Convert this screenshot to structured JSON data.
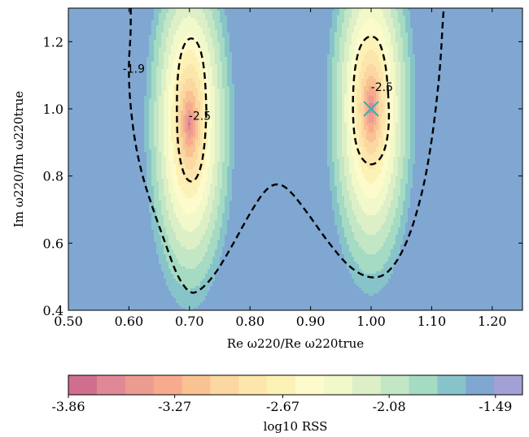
{
  "chart_data": [
    {
      "type": "heatmap",
      "title": "",
      "xlabel": "Re ω220/Re ω220true",
      "ylabel": "Im ω220/Im ω220true",
      "xlim": [
        0.5,
        1.25
      ],
      "ylim": [
        0.4,
        1.3
      ],
      "xticks": [
        0.5,
        0.6,
        0.7,
        0.8,
        0.9,
        1.0,
        1.1,
        1.2
      ],
      "xtick_labels": [
        "0.50",
        "0.60",
        "0.70",
        "0.80",
        "0.90",
        "1.00",
        "1.10",
        "1.20"
      ],
      "yticks": [
        0.4,
        0.6,
        0.8,
        1.0,
        1.2
      ],
      "ytick_labels": [
        "0.4",
        "0.6",
        "0.8",
        "1.0",
        "1.2"
      ],
      "field": "log10 RSS",
      "minima": [
        {
          "x": 0.7,
          "y": 0.955
        },
        {
          "x": 1.0,
          "y": 1.0
        }
      ],
      "true_value_marker": {
        "x": 1.0,
        "y": 1.0,
        "symbol": "x"
      },
      "contour_levels": [
        -1.9,
        -2.5
      ],
      "contour_labels": [
        {
          "text": "-1.9",
          "x": 0.608,
          "y": 1.12
        },
        {
          "text": "-2.5",
          "x": 0.717,
          "y": 0.98
        },
        {
          "text": "-2.5",
          "x": 1.018,
          "y": 1.065
        }
      ],
      "contour_lines": [
        {
          "level": -1.9,
          "points": [
            [
              0.603,
              1.3
            ],
            [
              0.603,
              1.22
            ],
            [
              0.6,
              1.15
            ],
            [
              0.6,
              1.08
            ],
            [
              0.603,
              1.0
            ],
            [
              0.61,
              0.9
            ],
            [
              0.622,
              0.8
            ],
            [
              0.64,
              0.7
            ],
            [
              0.66,
              0.6
            ],
            [
              0.68,
              0.5
            ],
            [
              0.7,
              0.45
            ],
            [
              0.715,
              0.455
            ],
            [
              0.74,
              0.5
            ],
            [
              0.77,
              0.59
            ],
            [
              0.8,
              0.69
            ],
            [
              0.825,
              0.76
            ],
            [
              0.845,
              0.78
            ],
            [
              0.865,
              0.76
            ],
            [
              0.895,
              0.69
            ],
            [
              0.93,
              0.6
            ],
            [
              0.965,
              0.525
            ],
            [
              1.0,
              0.492
            ],
            [
              1.03,
              0.51
            ],
            [
              1.06,
              0.6
            ],
            [
              1.085,
              0.75
            ],
            [
              1.1,
              0.9
            ],
            [
              1.11,
              1.05
            ],
            [
              1.115,
              1.15
            ],
            [
              1.118,
              1.25
            ],
            [
              1.12,
              1.3
            ]
          ]
        },
        {
          "level": -2.5,
          "points": [
            [
              0.728,
              0.995
            ],
            [
              0.726,
              1.09
            ],
            [
              0.721,
              1.16
            ],
            [
              0.713,
              1.2
            ],
            [
              0.703,
              1.213
            ],
            [
              0.693,
              1.2
            ],
            [
              0.685,
              1.16
            ],
            [
              0.68,
              1.09
            ],
            [
              0.679,
              1.0
            ],
            [
              0.68,
              0.91
            ],
            [
              0.685,
              0.84
            ],
            [
              0.693,
              0.795
            ],
            [
              0.703,
              0.78
            ],
            [
              0.713,
              0.795
            ],
            [
              0.721,
              0.84
            ],
            [
              0.726,
              0.91
            ],
            [
              0.728,
              0.995
            ]
          ]
        },
        {
          "level": -2.5,
          "points": [
            [
              1.028,
              1.05
            ],
            [
              1.025,
              1.12
            ],
            [
              1.018,
              1.18
            ],
            [
              1.01,
              1.21
            ],
            [
              1.0,
              1.217
            ],
            [
              0.99,
              1.21
            ],
            [
              0.98,
              1.18
            ],
            [
              0.973,
              1.12
            ],
            [
              0.97,
              1.05
            ],
            [
              0.97,
              0.97
            ],
            [
              0.973,
              0.91
            ],
            [
              0.98,
              0.865
            ],
            [
              0.99,
              0.84
            ],
            [
              1.0,
              0.833
            ],
            [
              1.01,
              0.84
            ],
            [
              1.02,
              0.865
            ],
            [
              1.027,
              0.91
            ],
            [
              1.03,
              0.97
            ],
            [
              1.028,
              1.05
            ]
          ]
        }
      ]
    },
    {
      "type": "colorbar",
      "xlabel": "log10 RSS",
      "vmin": -3.86,
      "vmax": -1.34,
      "levels": [
        -3.86,
        -3.69,
        -3.52,
        -3.35,
        -3.18,
        -3.01,
        -2.84,
        -2.67,
        -2.5,
        -2.33,
        -2.16,
        -1.99,
        -1.82,
        -1.65,
        -1.49,
        -1.34
      ],
      "tick_values": [
        -3.86,
        -3.27,
        -2.67,
        -2.08,
        -1.49
      ],
      "tick_labels": [
        "-3.86",
        "-3.27",
        "-2.67",
        "-2.08",
        "-1.49"
      ],
      "colors": [
        "#cf6e8d",
        "#e08896",
        "#eb9b8f",
        "#f7aa8e",
        "#f9c291",
        "#fbd7a1",
        "#fde6ab",
        "#fdf2b6",
        "#fdfbcc",
        "#f1f8c9",
        "#dcefc6",
        "#c3e6c5",
        "#a5dac3",
        "#87c4c9",
        "#7fa7d2",
        "#a3a0d5"
      ]
    }
  ]
}
